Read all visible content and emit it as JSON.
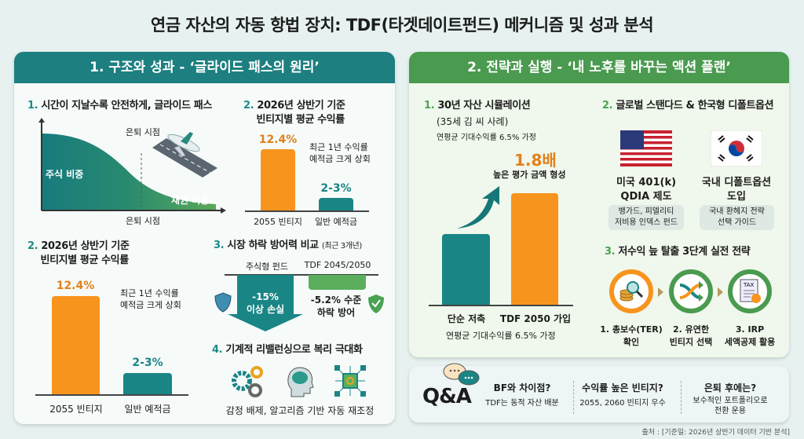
{
  "title": "연금 자산의 자동 항법 장치: TDF(타겟데이트펀드) 메커니즘 및 성과 분석",
  "colors": {
    "teal": "#1a8585",
    "green": "#4a9a4f",
    "orange": "#f7941d"
  },
  "left": {
    "header": "1. 구조와 성과 - ‘글라이드 패스의 원리’",
    "glide": {
      "num": "1.",
      "heading": "시간이 지날수록 안전하게, 글라이드 패스",
      "retire_top": "은퇴 시점",
      "equity": "주식 비중",
      "bond": "채권 비중",
      "retire_bottom": "은퇴 시점"
    },
    "returns_small": {
      "num": "2.",
      "heading_1": "2026년 상반기 기준",
      "heading_2": "빈티지별 평균 수익률",
      "bar1_value": "12.4%",
      "bar1_label": "2055 빈티지",
      "bar2_value": "2-3%",
      "bar2_label": "일반 예적금",
      "note_1": "최근 1년 수익률",
      "note_2": "예적금 크게 상회"
    },
    "returns": {
      "num": "2.",
      "heading_1": "2026년 상반기 기준",
      "heading_2": "빈티지별 평균 수익률",
      "bar1_value": "12.4%",
      "bar1_label": "2055 빈티지",
      "bar2_value": "2-3%",
      "bar2_label": "일반 예적금",
      "note_1": "최근 1년 수익률",
      "note_2": "예적금 크게 상회"
    },
    "defense": {
      "num": "3.",
      "heading": "시장 하락 방어력 비교",
      "period": "(최근 3개년)",
      "col1": "주식형 펀드",
      "col2": "TDF 2045/2050",
      "loss_1": "-15%",
      "loss_2": "이상 손실",
      "def_1": "-5.2% 수준",
      "def_2": "하락 방어"
    },
    "rebalance": {
      "num": "4.",
      "heading": "기계적 리밸런싱으로 복리 극대화",
      "caption": "감정 배제, 알고리즘 기반 자동 재조정"
    }
  },
  "right": {
    "header": "2. 전략과 실행 - ‘내 노후를 바꾸는 액션 플랜’",
    "sim": {
      "num": "1.",
      "heading": "30년 자산 시뮬레이션",
      "sub": "(35세 김 씨 사례)",
      "assume": "연평균 기대수익률 6.5% 가정",
      "multiple": "1.8배",
      "multiple_note": "높은 평가 금액 형성",
      "bar1_label": "단순 저축",
      "bar2_label": "TDF 2050 가입",
      "footnote": "연평균 기대수익률 6.5% 가정"
    },
    "global": {
      "num": "2.",
      "heading": "글로벌 스탠다드 & 한국형 디폴트옵션",
      "us_1": "미국 401(k)",
      "us_2": "QDIA 제도",
      "us_pill_1": "뱅가드, 피델리티",
      "us_pill_2": "저비용 인덱스 펀드",
      "kr_1": "국내 디폴트옵션",
      "kr_2": "도입",
      "kr_pill_1": "국내 환헤지 전략",
      "kr_pill_2": "선택 가이드"
    },
    "steps": {
      "num": "3.",
      "heading": "저수익 늪 탈출 3단계 실전 전략",
      "items": [
        {
          "l1": "1. 총보수(TER)",
          "l2": "확인",
          "icon": "coins-magnifier-icon"
        },
        {
          "l1": "2. 유연한",
          "l2": "빈티지 선택",
          "icon": "shuffle-arrows-icon"
        },
        {
          "l1": "3. IRP",
          "l2": "세액공제 활용",
          "icon": "tax-document-icon"
        }
      ],
      "tax": "TAX"
    }
  },
  "qa": {
    "label": "Q&A",
    "items": [
      {
        "q": "BF와 차이점?",
        "a1": "TDF는 동적 자산 배분",
        "a2": ""
      },
      {
        "q": "수익률 높은 빈티지?",
        "a1": "2055, 2060 빈티지 우수",
        "a2": ""
      },
      {
        "q": "은퇴 후에는?",
        "a1": "보수적인 포트폴리오로",
        "a2": "전환 운용"
      }
    ]
  },
  "source": "출처 : [기준일: 2026년 상반기 데이터 기반 분석]"
}
